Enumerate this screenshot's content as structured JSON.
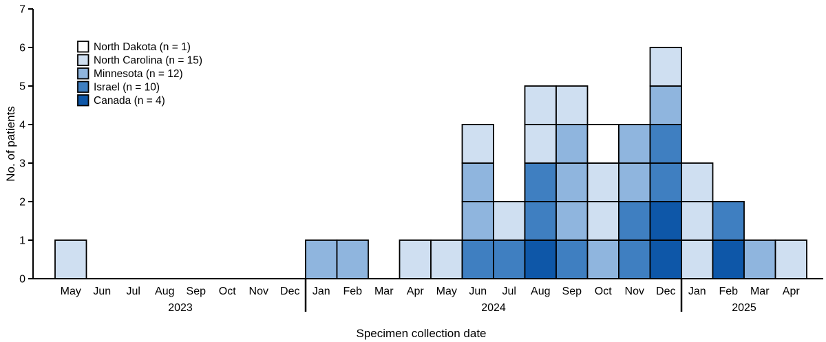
{
  "chart_data": {
    "type": "bar",
    "stacked": true,
    "unit_boxes": true,
    "title": "",
    "xlabel": "Specimen collection date",
    "ylabel": "No. of patients",
    "ylim": [
      0,
      7
    ],
    "yticks": [
      0,
      1,
      2,
      3,
      4,
      5,
      6,
      7
    ],
    "categories": [
      "May",
      "Jun",
      "Jul",
      "Aug",
      "Sep",
      "Oct",
      "Nov",
      "Dec",
      "Jan",
      "Feb",
      "Mar",
      "Apr",
      "May",
      "Jun",
      "Jul",
      "Aug",
      "Sep",
      "Oct",
      "Nov",
      "Dec",
      "Jan",
      "Feb",
      "Mar",
      "Apr"
    ],
    "year_groups": [
      {
        "label": "2023",
        "start": 0,
        "end": 7
      },
      {
        "label": "2024",
        "start": 8,
        "end": 19
      },
      {
        "label": "2025",
        "start": 20,
        "end": 23
      }
    ],
    "series": [
      {
        "name": "Canada (n = 4)",
        "color": "#0e57a8",
        "values": [
          0,
          0,
          0,
          0,
          0,
          0,
          0,
          0,
          0,
          0,
          0,
          0,
          0,
          0,
          0,
          1,
          0,
          0,
          0,
          2,
          0,
          1,
          0,
          0
        ]
      },
      {
        "name": "Israel (n = 10)",
        "color": "#3f7fc1",
        "values": [
          0,
          0,
          0,
          0,
          0,
          0,
          0,
          0,
          0,
          0,
          0,
          0,
          0,
          1,
          1,
          2,
          1,
          0,
          2,
          2,
          0,
          1,
          0,
          0
        ]
      },
      {
        "name": "Minnesota (n = 12)",
        "color": "#8fb5de",
        "values": [
          0,
          0,
          0,
          0,
          0,
          0,
          0,
          0,
          1,
          1,
          0,
          0,
          0,
          2,
          0,
          0,
          3,
          1,
          2,
          1,
          0,
          0,
          1,
          0
        ]
      },
      {
        "name": "North Carolina (n = 15)",
        "color": "#cfdff1",
        "values": [
          1,
          0,
          0,
          0,
          0,
          0,
          0,
          0,
          0,
          0,
          0,
          1,
          1,
          1,
          1,
          2,
          1,
          2,
          0,
          1,
          3,
          0,
          0,
          1
        ]
      },
      {
        "name": "North Dakota (n = 1)",
        "color": "#ffffff",
        "values": [
          0,
          0,
          0,
          0,
          0,
          0,
          0,
          0,
          0,
          0,
          0,
          0,
          0,
          0,
          0,
          0,
          0,
          1,
          0,
          0,
          0,
          0,
          0,
          0
        ]
      }
    ],
    "legend": {
      "position": "top-left",
      "order": [
        "North Dakota (n = 1)",
        "North Carolina (n = 15)",
        "Minnesota (n = 12)",
        "Israel (n = 10)",
        "Canada (n = 4)"
      ]
    }
  }
}
